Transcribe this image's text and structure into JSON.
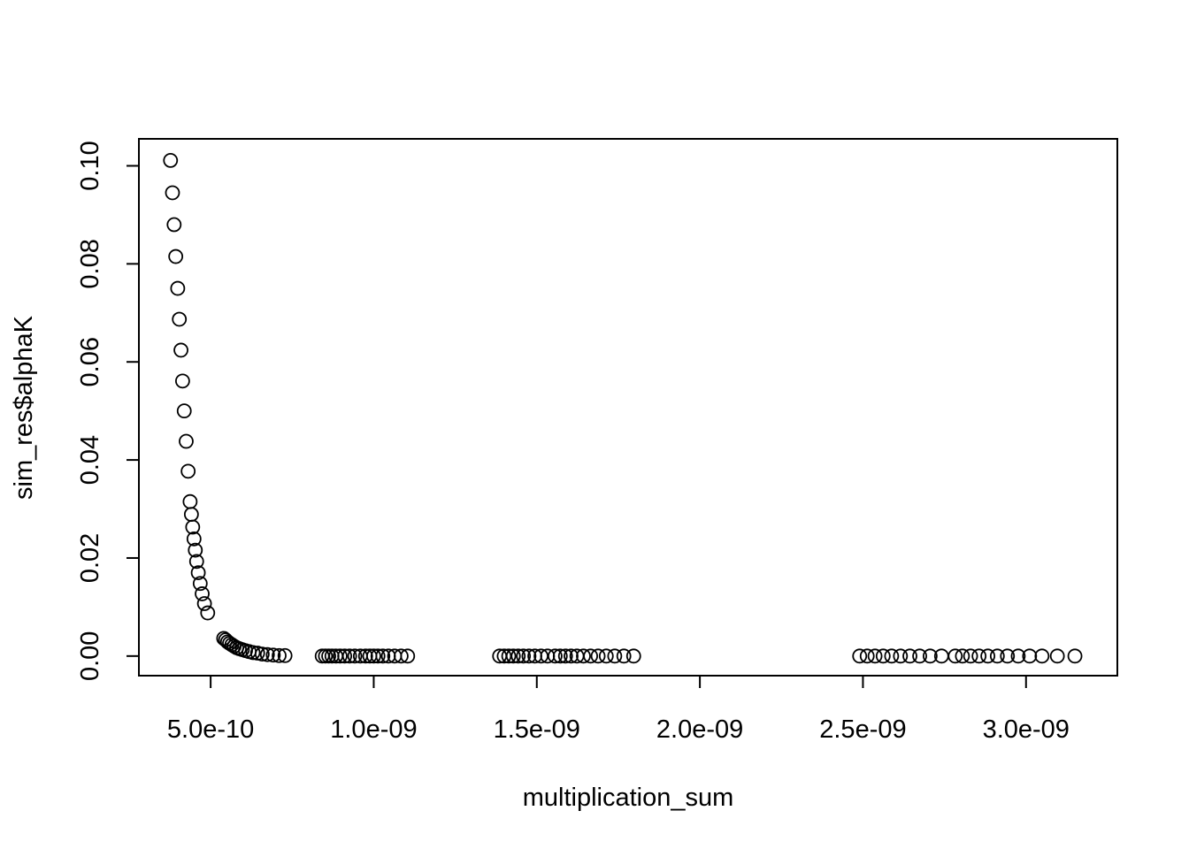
{
  "chart_data": {
    "type": "scatter",
    "title": "",
    "xlabel": "multiplication_sum",
    "ylabel": "sim_res$alphaK",
    "xlim": [
      2.8e-10,
      3.28e-09
    ],
    "ylim": [
      -0.004,
      0.1055
    ],
    "x_ticks": [
      {
        "value": 5e-10,
        "label": "5.0e-10"
      },
      {
        "value": 1e-09,
        "label": "1.0e-09"
      },
      {
        "value": 1.5e-09,
        "label": "1.5e-09"
      },
      {
        "value": 2e-09,
        "label": "2.0e-09"
      },
      {
        "value": 2.5e-09,
        "label": "2.5e-09"
      },
      {
        "value": 3e-09,
        "label": "3.0e-09"
      }
    ],
    "y_ticks": [
      {
        "value": 0.0,
        "label": "0.00"
      },
      {
        "value": 0.02,
        "label": "0.02"
      },
      {
        "value": 0.04,
        "label": "0.04"
      },
      {
        "value": 0.06,
        "label": "0.06"
      },
      {
        "value": 0.08,
        "label": "0.08"
      },
      {
        "value": 0.1,
        "label": "0.10"
      }
    ],
    "marker": "open-circle",
    "box": true,
    "grid": false,
    "series": [
      {
        "points": [
          [
            3.77e-10,
            0.1011
          ],
          [
            3.83e-10,
            0.0945
          ],
          [
            3.88e-10,
            0.088
          ],
          [
            3.93e-10,
            0.0815
          ],
          [
            3.99e-10,
            0.075
          ],
          [
            4.04e-10,
            0.0687
          ],
          [
            4.09e-10,
            0.0624
          ],
          [
            4.14e-10,
            0.0561
          ],
          [
            4.19e-10,
            0.05
          ],
          [
            4.25e-10,
            0.0438
          ],
          [
            4.31e-10,
            0.0377
          ],
          [
            4.37e-10,
            0.0315
          ],
          [
            4.41e-10,
            0.0289
          ],
          [
            4.45e-10,
            0.0263
          ],
          [
            4.49e-10,
            0.0239
          ],
          [
            4.53e-10,
            0.0216
          ],
          [
            4.57e-10,
            0.0193
          ],
          [
            4.62e-10,
            0.017
          ],
          [
            4.68e-10,
            0.0148
          ],
          [
            4.74e-10,
            0.0127
          ],
          [
            4.81e-10,
            0.0107
          ],
          [
            4.91e-10,
            0.0088
          ],
          [
            5.4e-10,
            0.0036
          ],
          [
            5.46e-10,
            0.0033
          ],
          [
            5.52e-10,
            0.0029
          ],
          [
            5.58e-10,
            0.0026
          ],
          [
            5.65e-10,
            0.0023
          ],
          [
            5.72e-10,
            0.002
          ],
          [
            5.8e-10,
            0.0017
          ],
          [
            5.88e-10,
            0.0015
          ],
          [
            5.97e-10,
            0.0013
          ],
          [
            6.07e-10,
            0.0011
          ],
          [
            6.18e-10,
            0.0009
          ],
          [
            6.3e-10,
            0.0007
          ],
          [
            6.44e-10,
            0.0006
          ],
          [
            6.58e-10,
            0.0004
          ],
          [
            6.74e-10,
            0.0003
          ],
          [
            6.92e-10,
            0.0002
          ],
          [
            7.1e-10,
            0.0001
          ],
          [
            7.28e-10,
            0.0001
          ],
          [
            8.42e-10,
            0.0
          ],
          [
            8.52e-10,
            0.0
          ],
          [
            8.62e-10,
            0.0
          ],
          [
            8.72e-10,
            0.0
          ],
          [
            8.84e-10,
            0.0
          ],
          [
            8.97e-10,
            0.0
          ],
          [
            9.11e-10,
            0.0
          ],
          [
            9.26e-10,
            0.0
          ],
          [
            9.42e-10,
            0.0
          ],
          [
            9.59e-10,
            0.0
          ],
          [
            9.75e-10,
            0.0
          ],
          [
            9.88e-10,
            0.0
          ],
          [
            1e-09,
            0.0
          ],
          [
            1.013e-09,
            0.0
          ],
          [
            1.028e-09,
            0.0
          ],
          [
            1.045e-09,
            0.0
          ],
          [
            1.064e-09,
            0.0
          ],
          [
            1.084e-09,
            0.0
          ],
          [
            1.104e-09,
            0.0
          ],
          [
            1.386e-09,
            0.0
          ],
          [
            1.4e-09,
            0.0
          ],
          [
            1.414e-09,
            0.0
          ],
          [
            1.428e-09,
            0.0
          ],
          [
            1.443e-09,
            0.0
          ],
          [
            1.459e-09,
            0.0
          ],
          [
            1.476e-09,
            0.0
          ],
          [
            1.494e-09,
            0.0
          ],
          [
            1.513e-09,
            0.0
          ],
          [
            1.533e-09,
            0.0
          ],
          [
            1.556e-09,
            0.0
          ],
          [
            1.572e-09,
            0.0
          ],
          [
            1.588e-09,
            0.0
          ],
          [
            1.605e-09,
            0.0
          ],
          [
            1.623e-09,
            0.0
          ],
          [
            1.643e-09,
            0.0
          ],
          [
            1.665e-09,
            0.0
          ],
          [
            1.688e-09,
            0.0
          ],
          [
            1.713e-09,
            0.0
          ],
          [
            1.739e-09,
            0.0
          ],
          [
            1.767e-09,
            0.0
          ],
          [
            1.797e-09,
            0.0
          ],
          [
            2.49e-09,
            0.0
          ],
          [
            2.513e-09,
            0.0
          ],
          [
            2.537e-09,
            0.0
          ],
          [
            2.562e-09,
            0.0
          ],
          [
            2.588e-09,
            0.0
          ],
          [
            2.615e-09,
            0.0
          ],
          [
            2.644e-09,
            0.0
          ],
          [
            2.674e-09,
            0.0
          ],
          [
            2.706e-09,
            0.0
          ],
          [
            2.741e-09,
            0.0
          ],
          [
            2.783e-09,
            0.0
          ],
          [
            2.805e-09,
            0.0
          ],
          [
            2.83e-09,
            0.0
          ],
          [
            2.856e-09,
            0.0
          ],
          [
            2.883e-09,
            0.0
          ],
          [
            2.912e-09,
            0.0
          ],
          [
            2.943e-09,
            0.0
          ],
          [
            2.976e-09,
            0.0
          ],
          [
            3.011e-09,
            0.0
          ],
          [
            3.049e-09,
            0.0
          ],
          [
            3.096e-09,
            0.0
          ],
          [
            3.15e-09,
            0.0
          ]
        ]
      }
    ]
  }
}
